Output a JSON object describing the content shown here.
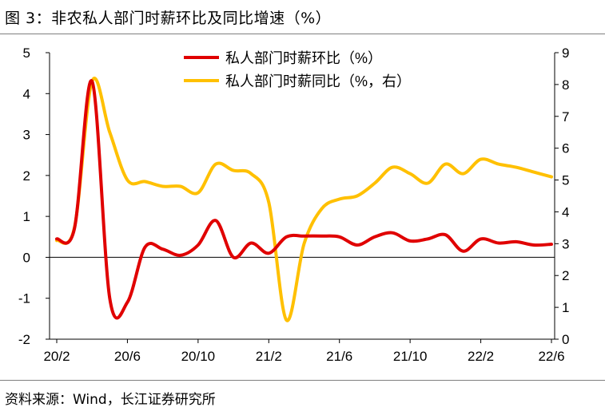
{
  "title": "图 3：非农私人部门时薪环比及同比增速（%）",
  "source": "资料来源：Wind，长江证券研究所",
  "chart_data": {
    "type": "line",
    "x": [
      "20/2",
      "20/3",
      "20/4",
      "20/5",
      "20/6",
      "20/7",
      "20/8",
      "20/9",
      "20/10",
      "20/11",
      "20/12",
      "21/1",
      "21/2",
      "21/3",
      "21/4",
      "21/5",
      "21/6",
      "21/7",
      "21/8",
      "21/9",
      "21/10",
      "21/11",
      "21/12",
      "22/1",
      "22/2",
      "22/3",
      "22/4",
      "22/5",
      "22/6"
    ],
    "x_tick_labels": [
      "20/2",
      "20/6",
      "20/10",
      "21/2",
      "21/6",
      "21/10",
      "22/2",
      "22/6"
    ],
    "y_left": {
      "min": -2,
      "max": 5,
      "ticks": [
        "-2",
        "-1",
        "0",
        "1",
        "2",
        "3",
        "4",
        "5"
      ]
    },
    "y_right": {
      "min": 0,
      "max": 9,
      "ticks": [
        "0",
        "1",
        "2",
        "3",
        "4",
        "5",
        "6",
        "7",
        "8",
        "9"
      ]
    },
    "legend_position": "top-center",
    "grid": false,
    "series": [
      {
        "name": "私人部门时薪环比（%）",
        "axis": "left",
        "color": "#e00000",
        "values": [
          0.45,
          0.7,
          4.3,
          -1.0,
          -1.1,
          0.25,
          0.2,
          0.05,
          0.3,
          0.9,
          0.0,
          0.35,
          0.1,
          0.5,
          0.52,
          0.52,
          0.5,
          0.3,
          0.5,
          0.6,
          0.4,
          0.45,
          0.55,
          0.15,
          0.45,
          0.35,
          0.38,
          0.3,
          0.32
        ]
      },
      {
        "name": "私人部门时薪同比（%，右）",
        "axis": "right",
        "color": "#ffc000",
        "values": [
          3.1,
          3.5,
          8.1,
          6.5,
          5.0,
          4.95,
          4.8,
          4.8,
          4.6,
          5.5,
          5.3,
          5.2,
          4.3,
          0.6,
          3.0,
          4.1,
          4.4,
          4.5,
          4.9,
          5.4,
          5.2,
          4.9,
          5.5,
          5.2,
          5.65,
          5.5,
          5.4,
          5.25,
          5.1
        ]
      }
    ]
  }
}
